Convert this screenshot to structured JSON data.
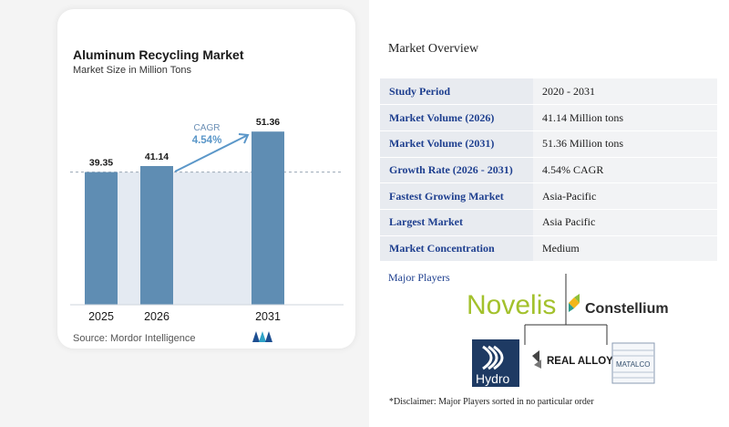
{
  "chart_data": {
    "type": "bar",
    "title": "Aluminum Recycling Market",
    "subtitle": "Market Size in Million Tons",
    "categories": [
      "2025",
      "2026",
      "2031"
    ],
    "values": [
      39.35,
      41.14,
      51.36
    ],
    "value_labels": [
      "39.35",
      "41.14",
      "51.36"
    ],
    "cagr_label": "CAGR",
    "cagr_value": "4.54%",
    "colors": {
      "bar": "#5f8db3",
      "bar_shade": "#e4eaf2",
      "cagr": "#5b97c9"
    }
  },
  "source": "Source: Mordor Intelligence",
  "overview": {
    "title": "Market Overview",
    "rows": [
      {
        "label": "Study Period",
        "value": "2020 - 2031"
      },
      {
        "label": "Market Volume (2026)",
        "value": "41.14 Million tons"
      },
      {
        "label": "Market Volume (2031)",
        "value": "51.36 Million tons"
      },
      {
        "label": "Growth Rate (2026 - 2031)",
        "value": "4.54% CAGR"
      },
      {
        "label": "Fastest Growing Market",
        "value": "Asia-Pacific"
      },
      {
        "label": "Largest Market",
        "value": "Asia Pacific"
      },
      {
        "label": "Market Concentration",
        "value": "Medium"
      }
    ]
  },
  "players": {
    "title": "Major Players",
    "logos": {
      "novelis": "Novelis",
      "constellium": "Constellium",
      "hydro": "Hydro",
      "real_alloy": "REAL ALLOY",
      "matalco": "MATALCO"
    }
  },
  "disclaimer": "*Disclaimer: Major Players sorted in no particular order"
}
